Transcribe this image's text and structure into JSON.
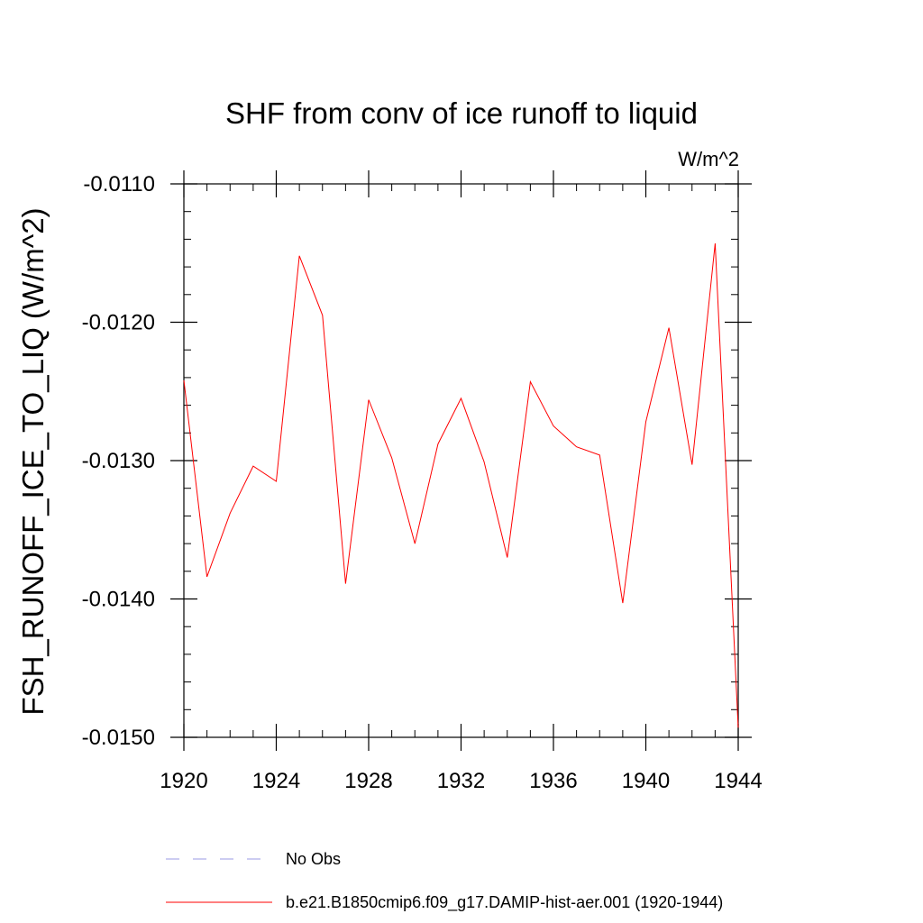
{
  "chart_data": {
    "type": "line",
    "title": "SHF from conv of ice runoff to liquid",
    "units_label": "W/m^2",
    "ylabel": "FSH_RUNOFF_ICE_TO_LIQ  (W/m^2)",
    "xlabel": "",
    "xlim": [
      1920,
      1944
    ],
    "ylim": [
      -0.015,
      -0.011
    ],
    "x_ticks": [
      1920,
      1924,
      1928,
      1932,
      1936,
      1940,
      1944
    ],
    "x_tick_labels": [
      "1920",
      "1924",
      "1928",
      "1932",
      "1936",
      "1940",
      "1944"
    ],
    "y_ticks": [
      -0.011,
      -0.012,
      -0.013,
      -0.014,
      -0.015
    ],
    "y_tick_labels": [
      "-0.0110",
      "-0.0120",
      "-0.0130",
      "-0.0140",
      "-0.0150"
    ],
    "grid": false,
    "series": [
      {
        "name": "b.e21.B1850cmip6.f09_g17.DAMIP-hist-aer.001 (1920-1944)",
        "color": "#ff0000",
        "x": [
          1920,
          1921,
          1922,
          1923,
          1924,
          1925,
          1926,
          1927,
          1928,
          1929,
          1930,
          1931,
          1932,
          1933,
          1934,
          1935,
          1936,
          1937,
          1938,
          1939,
          1940,
          1941,
          1942,
          1943,
          1944
        ],
        "y": [
          -0.01242,
          -0.01384,
          -0.01338,
          -0.01304,
          -0.01315,
          -0.01152,
          -0.01195,
          -0.01389,
          -0.01256,
          -0.01298,
          -0.0136,
          -0.01288,
          -0.01255,
          -0.01301,
          -0.0137,
          -0.01243,
          -0.01275,
          -0.0129,
          -0.01296,
          -0.01403,
          -0.01272,
          -0.01204,
          -0.01303,
          -0.01143,
          -0.01493
        ]
      }
    ],
    "legend": [
      {
        "label": "No Obs",
        "color": "#9a9ae6",
        "style": "dashed"
      },
      {
        "label": "b.e21.B1850cmip6.f09_g17.DAMIP-hist-aer.001 (1920-1944)",
        "color": "#ff0000",
        "style": "solid"
      }
    ]
  }
}
